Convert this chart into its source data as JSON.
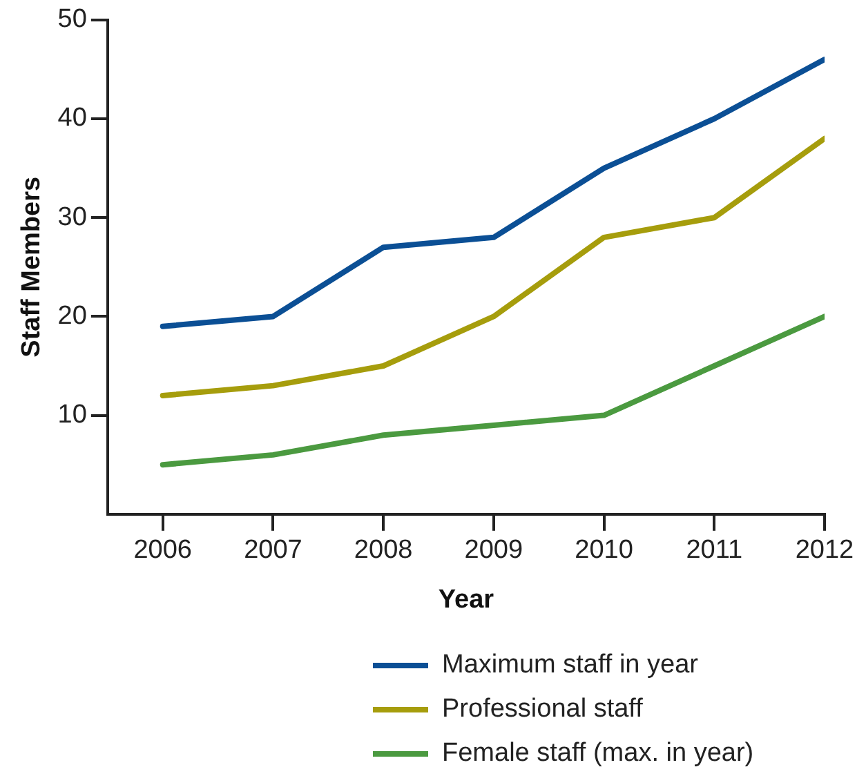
{
  "chart_data": {
    "type": "line",
    "xlabel": "Year",
    "ylabel": "Staff Members",
    "x": [
      2006,
      2007,
      2008,
      2009,
      2010,
      2011,
      2012
    ],
    "xlim": [
      2005.5,
      2012
    ],
    "xticks": [
      2006,
      2007,
      2008,
      2009,
      2010,
      2011,
      2012
    ],
    "ylim": [
      0,
      50
    ],
    "yticks": [
      10,
      20,
      30,
      40,
      50
    ],
    "grid": false,
    "legend": "bottom",
    "marker": "none",
    "line_style": "solid",
    "series": [
      {
        "name": "Maximum staff in year",
        "color": "#0b4f95",
        "values": [
          19,
          20,
          27,
          28,
          35,
          40,
          46
        ]
      },
      {
        "name": "Professional staff",
        "color": "#a69d0c",
        "values": [
          12,
          13,
          15,
          20,
          28,
          30,
          38
        ]
      },
      {
        "name": "Female staff (max. in year)",
        "color": "#4b9a40",
        "values": [
          5,
          6,
          8,
          9,
          10,
          15,
          20
        ]
      }
    ]
  }
}
